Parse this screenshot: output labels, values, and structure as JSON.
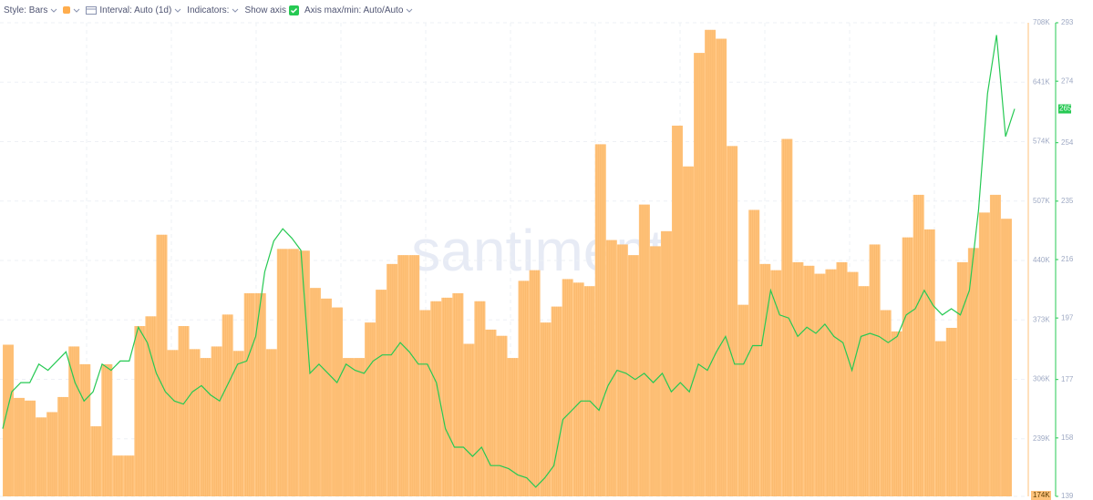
{
  "toolbar": {
    "style": "Style: Bars",
    "interval": "Interval: Auto (1d)",
    "indicators": "Indicators:",
    "show_axis": "Show axis",
    "axis_minmax": "Axis max/min: Auto/Auto"
  },
  "chart_data": {
    "type": "bar",
    "watermark": "santiment",
    "ylim": [
      174000,
      708000
    ],
    "yticks": [
      {
        "value": 708000,
        "label": "708K"
      },
      {
        "value": 641000,
        "label": "641K"
      },
      {
        "value": 574000,
        "label": "574K"
      },
      {
        "value": 507000,
        "label": "507K"
      },
      {
        "value": 440000,
        "label": "440K"
      },
      {
        "value": 373000,
        "label": "373K"
      },
      {
        "value": 306000,
        "label": "306K"
      },
      {
        "value": 239000,
        "label": "239K"
      },
      {
        "value": 174000,
        "label": "174K"
      }
    ],
    "y2lim": [
      139,
      293
    ],
    "y2ticks": [
      293,
      274,
      254,
      235,
      216,
      197,
      177,
      158,
      139
    ],
    "series": [
      {
        "type": "bar",
        "color": "#ffc27a",
        "values": [
          345000,
          285000,
          282000,
          263000,
          269000,
          286000,
          343000,
          323000,
          253000,
          323000,
          220000,
          220000,
          366000,
          377000,
          469000,
          339000,
          366000,
          340000,
          330000,
          343000,
          379000,
          338000,
          403000,
          403000,
          340000,
          453000,
          453000,
          451000,
          409000,
          397000,
          387000,
          330000,
          330000,
          370000,
          407000,
          436000,
          446000,
          446000,
          384000,
          394000,
          398000,
          403000,
          346000,
          394000,
          362000,
          355000,
          330000,
          417000,
          429000,
          370000,
          388000,
          419000,
          415000,
          411000,
          571000,
          463000,
          458000,
          446000,
          503000,
          456000,
          473000,
          592000,
          546000,
          674000,
          700000,
          690000,
          569000,
          390000,
          497000,
          436000,
          429000,
          577000,
          438000,
          434000,
          425000,
          430000,
          438000,
          427000,
          411000,
          458000,
          384000,
          360000,
          466000,
          514000,
          475000,
          349000,
          364000,
          438000,
          454000,
          494000,
          514000,
          487000
        ]
      },
      {
        "type": "line",
        "axis": "y2",
        "color": "#26c953",
        "values": [
          161,
          173,
          176,
          176,
          182,
          180,
          183,
          186,
          176,
          170,
          173,
          182,
          180,
          183,
          183,
          194,
          189,
          179,
          173,
          170,
          169,
          173,
          175,
          172,
          170,
          176,
          182,
          183,
          191,
          212,
          222,
          226,
          223,
          219,
          179,
          182,
          179,
          176,
          182,
          180,
          179,
          183,
          185,
          185,
          189,
          186,
          182,
          182,
          176,
          161,
          155,
          155,
          152,
          155,
          149,
          149,
          148,
          146,
          145,
          142,
          145,
          149,
          164,
          167,
          170,
          170,
          167,
          175,
          180,
          179,
          177,
          179,
          176,
          179,
          173,
          176,
          173,
          182,
          180,
          186,
          191,
          182,
          182,
          188,
          188,
          206,
          198,
          197,
          191,
          194,
          192,
          195,
          191,
          189,
          180,
          191,
          192,
          191,
          189,
          191,
          198,
          200,
          206,
          201,
          198,
          200,
          198,
          206,
          232,
          270,
          289,
          256,
          265
        ]
      }
    ]
  }
}
